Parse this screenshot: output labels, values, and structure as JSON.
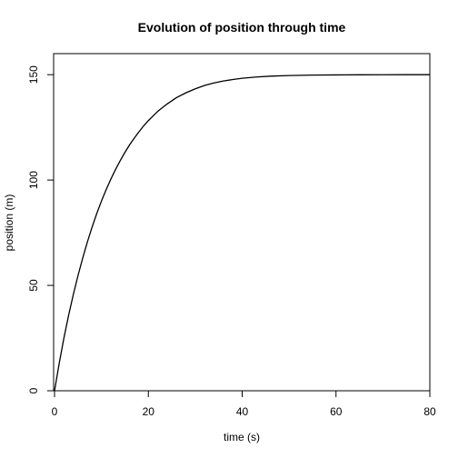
{
  "chart_data": {
    "type": "line",
    "title": "Evolution of position through time",
    "xlabel": "time (s)",
    "ylabel": "position (m)",
    "xlim": [
      0,
      80
    ],
    "ylim": [
      0,
      160
    ],
    "x_ticks": [
      0,
      20,
      40,
      60,
      80
    ],
    "y_ticks": [
      0,
      50,
      100,
      150
    ],
    "x_tick_labels": [
      "0",
      "20",
      "40",
      "60",
      "80"
    ],
    "y_tick_labels": [
      "0",
      "50",
      "100",
      "150"
    ],
    "grid": false,
    "series": [
      {
        "name": "position",
        "color": "#000000",
        "x": [
          0,
          1,
          2,
          3,
          4,
          5,
          6,
          7,
          8,
          9,
          10,
          11,
          12,
          13,
          14,
          15,
          16,
          17,
          18,
          19,
          20,
          22,
          24,
          26,
          28,
          30,
          32,
          34,
          36,
          38,
          40,
          43,
          46,
          50,
          55,
          60,
          65,
          70,
          75,
          80
        ],
        "y": [
          0,
          13.0,
          25.0,
          35.8,
          45.6,
          54.6,
          62.9,
          70.6,
          77.6,
          84.1,
          90.0,
          95.4,
          100.4,
          105.0,
          109.2,
          113.1,
          116.7,
          119.9,
          122.9,
          125.7,
          128.2,
          132.6,
          136.1,
          139.1,
          141.4,
          143.3,
          144.9,
          146.1,
          147.0,
          147.7,
          148.3,
          148.9,
          149.3,
          149.6,
          149.8,
          149.9,
          149.95,
          149.98,
          149.99,
          150.0
        ]
      }
    ]
  }
}
